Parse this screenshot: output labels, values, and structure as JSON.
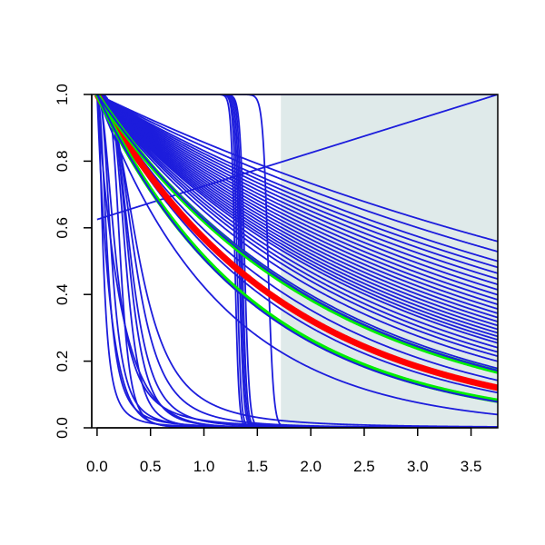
{
  "chart_data": {
    "type": "line",
    "title": "",
    "xlabel": "",
    "ylabel": "",
    "xlim": [
      -0.05,
      3.75
    ],
    "ylim": [
      0.0,
      1.0
    ],
    "grid": false,
    "legend": "none",
    "x_ticks": [
      "0.0",
      "0.5",
      "1.0",
      "1.5",
      "2.0",
      "2.5",
      "3.0",
      "3.5"
    ],
    "y_ticks": [
      "0.0",
      "0.2",
      "0.4",
      "0.6",
      "0.8",
      "1.0"
    ],
    "shaded_region": {
      "x": [
        1.72,
        3.75
      ],
      "color": "#dfeaea"
    },
    "colors": {
      "family": "#1c1cdc",
      "red": "#ff0000",
      "green": "#00ee00",
      "axis": "#000000"
    },
    "series": [
      {
        "values": "exp",
        "rate": 0.155
      },
      {
        "values": "exp",
        "rate": 0.17
      },
      {
        "values": "exp",
        "rate": 0.185
      },
      {
        "values": "exp",
        "rate": 0.195
      },
      {
        "values": "exp",
        "rate": 0.205
      },
      {
        "values": "exp",
        "rate": 0.215
      },
      {
        "values": "exp",
        "rate": 0.225
      },
      {
        "values": "exp",
        "rate": 0.235
      },
      {
        "values": "exp",
        "rate": 0.245
      },
      {
        "values": "exp",
        "rate": 0.255
      },
      {
        "values": "exp",
        "rate": 0.265
      },
      {
        "values": "exp",
        "rate": 0.275
      },
      {
        "values": "exp",
        "rate": 0.285
      },
      {
        "values": "exp",
        "rate": 0.295
      },
      {
        "values": "exp",
        "rate": 0.305
      },
      {
        "values": "exp",
        "rate": 0.315
      },
      {
        "values": "exp",
        "rate": 0.325
      },
      {
        "values": "exp",
        "rate": 0.335
      },
      {
        "values": "exp",
        "rate": 0.345
      },
      {
        "values": "exp",
        "rate": 0.355
      },
      {
        "values": "exp",
        "rate": 0.365
      },
      {
        "values": "exp",
        "rate": 0.38
      },
      {
        "values": "exp",
        "rate": 0.395
      },
      {
        "values": "exp",
        "rate": 0.41
      },
      {
        "values": "exp",
        "rate": 0.43
      },
      {
        "values": "exp",
        "rate": 0.46
      },
      {
        "values": "exp",
        "rate": 0.52
      },
      {
        "values": "exp",
        "rate": 0.6
      },
      {
        "values": "exp",
        "rate": 0.86
      },
      {
        "values": "logistic",
        "mid": 1.29,
        "width": 0.018
      },
      {
        "values": "logistic",
        "mid": 1.31,
        "width": 0.018
      },
      {
        "values": "logistic",
        "mid": 1.33,
        "width": 0.02
      },
      {
        "values": "logistic",
        "mid": 1.345,
        "width": 0.02
      },
      {
        "values": "logistic",
        "mid": 1.36,
        "width": 0.02
      },
      {
        "values": "logistic",
        "mid": 1.38,
        "width": 0.022
      },
      {
        "values": "logistic",
        "mid": 1.6,
        "width": 0.025
      },
      {
        "values": "hill",
        "half": 0.4,
        "n": 2.6
      },
      {
        "values": "hill",
        "half": 0.36,
        "n": 3.0
      },
      {
        "values": "hill",
        "half": 0.32,
        "n": 3.4
      },
      {
        "values": "hill",
        "half": 0.3,
        "n": 3.8
      },
      {
        "values": "hill",
        "half": 0.27,
        "n": 4.2
      },
      {
        "values": "hill",
        "half": 0.22,
        "n": 4.8
      },
      {
        "values": "hill",
        "half": 0.18,
        "n": 2.2
      },
      {
        "values": "hill",
        "half": 0.14,
        "n": 2.6
      },
      {
        "values": "hill",
        "half": 0.1,
        "n": 2.2
      },
      {
        "values": "hill",
        "half": 0.06,
        "n": 2.0
      },
      {
        "values": "exp",
        "rate": 8.0
      },
      {
        "values": "exp",
        "rate": 4.5
      },
      {
        "values": "line",
        "intercept": 0.625,
        "slope": 0.1
      },
      {
        "values": "line",
        "intercept": 1.0,
        "slope": 0.0
      }
    ],
    "highlight": [
      {
        "values": "exp",
        "rate": 0.565,
        "color": "red",
        "width": 7
      },
      {
        "values": "exp",
        "rate": 0.475,
        "color": "green",
        "width": 5
      },
      {
        "values": "exp",
        "rate": 0.67,
        "color": "green",
        "width": 5
      },
      {
        "values": "exp",
        "rate": 0.47,
        "color": "family",
        "width": 2
      },
      {
        "values": "exp",
        "rate": 0.68,
        "color": "family",
        "width": 2
      }
    ]
  }
}
